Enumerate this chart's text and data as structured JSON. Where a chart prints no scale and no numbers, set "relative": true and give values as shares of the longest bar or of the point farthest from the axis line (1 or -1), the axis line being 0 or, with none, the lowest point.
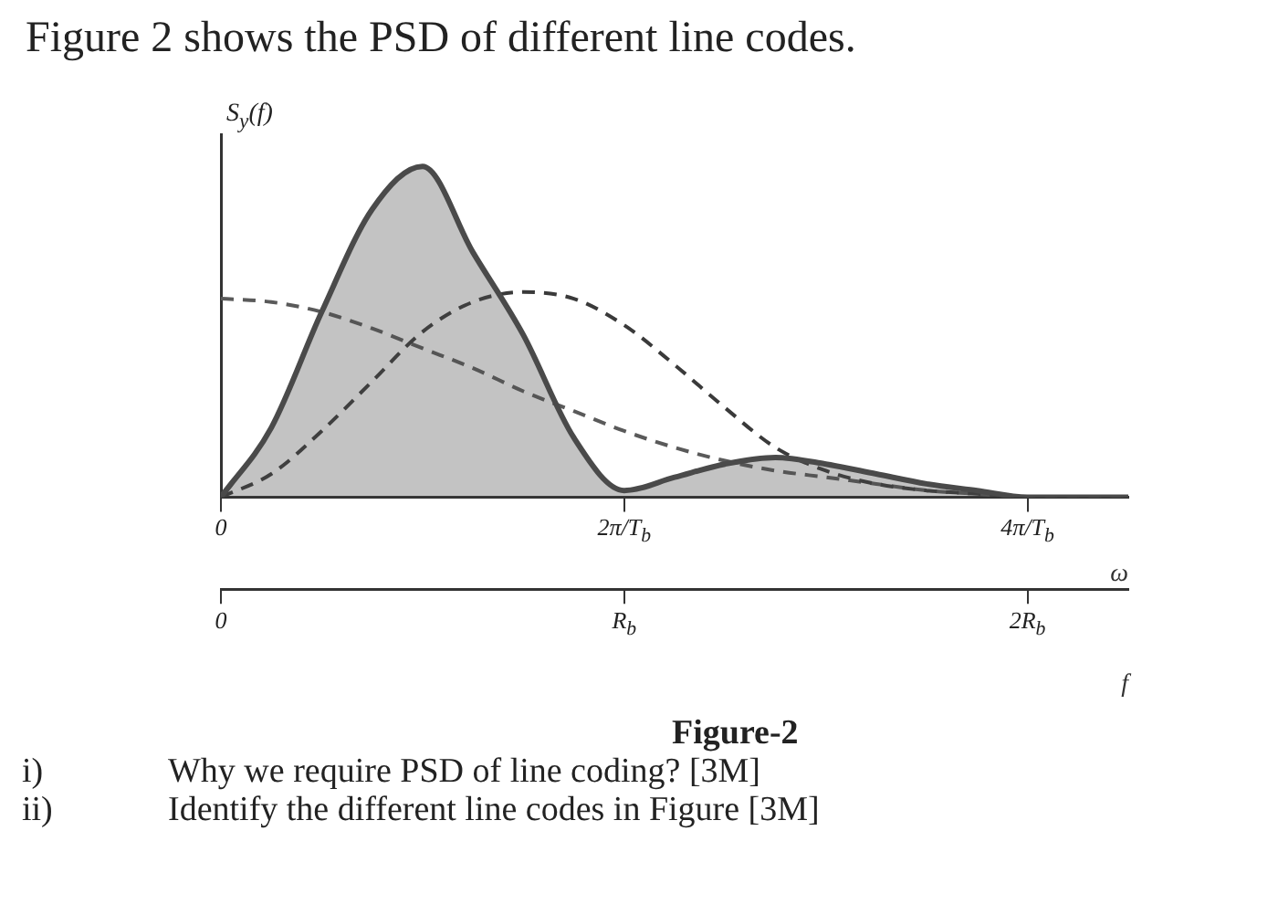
{
  "chart_data": {
    "type": "line",
    "title": "Figure 2 shows the PSD of different line codes.",
    "ylabel": "S$_{y}$(f)",
    "xlabel": "f",
    "x2label": "ω",
    "relative": true,
    "grid": false,
    "legend": false,
    "marker": "none",
    "x": [
      0,
      0.125,
      0.25,
      0.375,
      0.5,
      0.625,
      0.75,
      0.875,
      1,
      1.125,
      1.25,
      1.375,
      1.5,
      1.625,
      1.75,
      1.875,
      2,
      2.125,
      2.25
    ],
    "xlim": [
      0,
      2.25
    ],
    "xticks": [
      0,
      {
        "value": 1,
        "label": "R$_{b}$"
      },
      {
        "value": 2,
        "label": "2R$_{b}$"
      }
    ],
    "x2lim": [
      0,
      4.5
    ],
    "x2ticks": [
      0,
      {
        "value": 2,
        "label": "2π/T$_{b}$"
      },
      {
        "value": 4,
        "label": "4π/T$_{b}$"
      }
    ],
    "series": [
      {
        "type": "area",
        "color": "#4a4a4a",
        "line_style": "solid",
        "values": [
          0,
          0.21,
          0.56,
          0.87,
          1,
          0.74,
          0.49,
          0.18,
          0.02,
          0.06,
          0.1,
          0.12,
          0.1,
          0.07,
          0.04,
          0.02,
          0,
          0,
          0
        ]
      },
      {
        "type": "line",
        "color": "#3a3a3a",
        "line_style": "dashed",
        "values": [
          0,
          0.07,
          0.2,
          0.35,
          0.5,
          0.59,
          0.62,
          0.6,
          0.52,
          0.4,
          0.27,
          0.15,
          0.08,
          0.04,
          0.02,
          0.01,
          0,
          0,
          0
        ]
      },
      {
        "type": "line",
        "color": "#5a5a5a",
        "line_style": "dashed",
        "values": [
          0.6,
          0.59,
          0.56,
          0.51,
          0.45,
          0.39,
          0.32,
          0.26,
          0.2,
          0.15,
          0.11,
          0.08,
          0.06,
          0.04,
          0.02,
          0.01,
          0,
          0,
          0
        ]
      }
    ],
    "annotations": [
      "Figure-2",
      "i)\tWhy we require PSD of line coding? [3M]",
      "ii)\tIdentify the different line codes in Figure [3M]"
    ]
  }
}
